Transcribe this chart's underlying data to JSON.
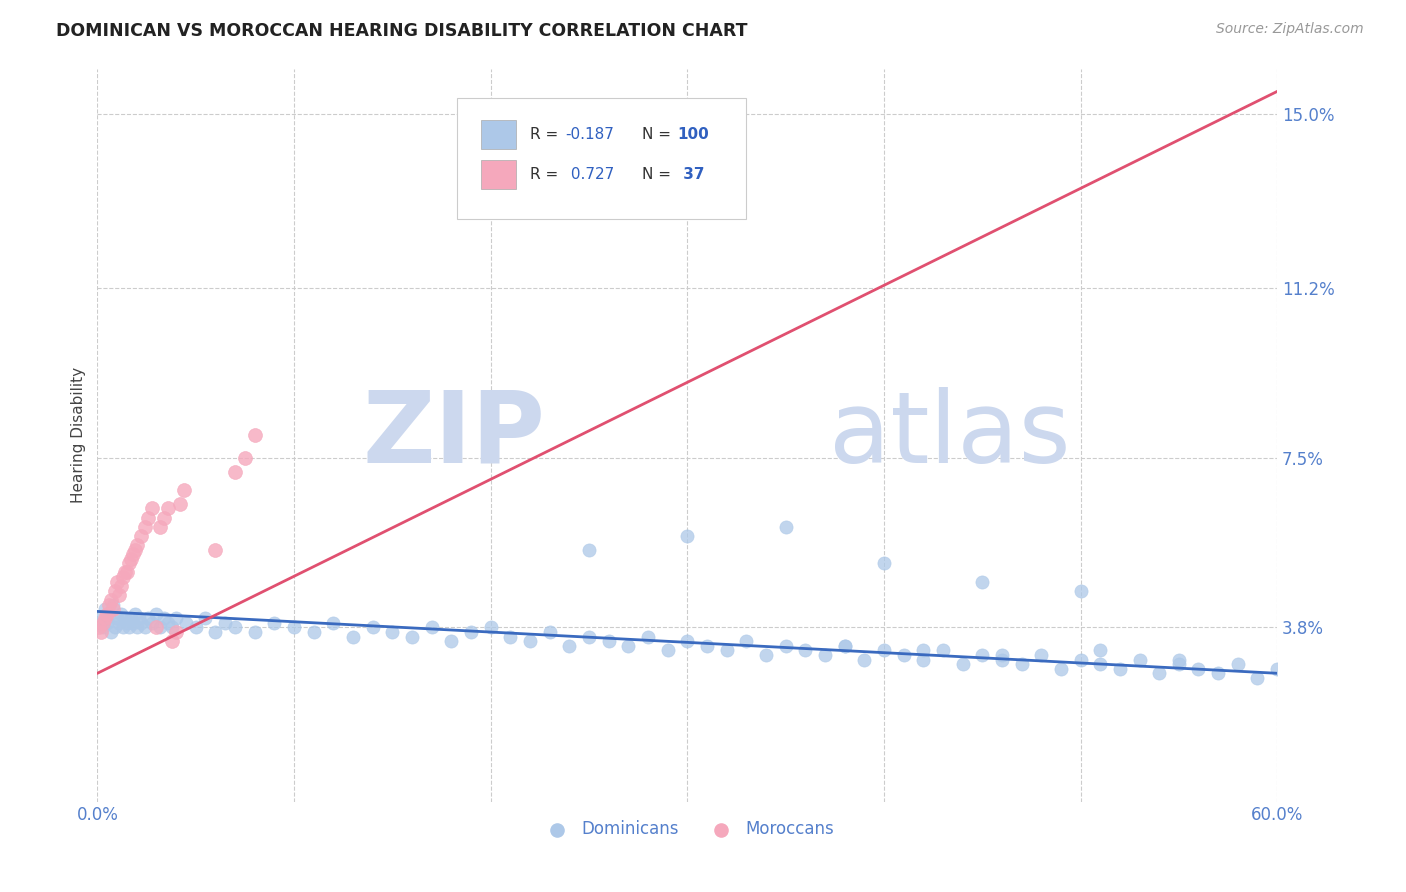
{
  "title": "DOMINICAN VS MOROCCAN HEARING DISABILITY CORRELATION CHART",
  "source": "Source: ZipAtlas.com",
  "ylabel": "Hearing Disability",
  "xlim": [
    0.0,
    0.6
  ],
  "ylim": [
    0.0,
    0.16
  ],
  "yticks": [
    0.038,
    0.075,
    0.112,
    0.15
  ],
  "ytick_labels": [
    "3.8%",
    "7.5%",
    "11.2%",
    "15.0%"
  ],
  "background_color": "#ffffff",
  "dominican_color": "#adc8e8",
  "moroccan_color": "#f5a8bc",
  "dominican_line_color": "#3a6abf",
  "moroccan_line_color": "#e05070",
  "legend_R_dominican": "-0.187",
  "legend_N_dominican": "100",
  "legend_R_moroccan": "0.727",
  "legend_N_moroccan": "37",
  "watermark_zip": "ZIP",
  "watermark_atlas": "atlas",
  "watermark_color": "#ccd8ee",
  "dominican_scatter_x": [
    0.002,
    0.003,
    0.004,
    0.005,
    0.006,
    0.007,
    0.008,
    0.009,
    0.01,
    0.011,
    0.012,
    0.013,
    0.014,
    0.015,
    0.016,
    0.017,
    0.018,
    0.019,
    0.02,
    0.021,
    0.022,
    0.024,
    0.026,
    0.028,
    0.03,
    0.032,
    0.034,
    0.036,
    0.038,
    0.04,
    0.045,
    0.05,
    0.055,
    0.06,
    0.065,
    0.07,
    0.08,
    0.09,
    0.1,
    0.11,
    0.12,
    0.13,
    0.14,
    0.15,
    0.16,
    0.17,
    0.18,
    0.19,
    0.2,
    0.21,
    0.22,
    0.23,
    0.24,
    0.25,
    0.26,
    0.27,
    0.28,
    0.29,
    0.3,
    0.31,
    0.32,
    0.33,
    0.34,
    0.35,
    0.36,
    0.37,
    0.38,
    0.39,
    0.4,
    0.41,
    0.42,
    0.43,
    0.44,
    0.45,
    0.46,
    0.47,
    0.48,
    0.49,
    0.5,
    0.51,
    0.52,
    0.53,
    0.54,
    0.55,
    0.56,
    0.57,
    0.58,
    0.59,
    0.6,
    0.25,
    0.3,
    0.35,
    0.4,
    0.45,
    0.5,
    0.38,
    0.42,
    0.46,
    0.51,
    0.55
  ],
  "dominican_scatter_y": [
    0.04,
    0.038,
    0.042,
    0.039,
    0.041,
    0.037,
    0.043,
    0.038,
    0.04,
    0.039,
    0.041,
    0.038,
    0.04,
    0.039,
    0.038,
    0.04,
    0.039,
    0.041,
    0.038,
    0.04,
    0.039,
    0.038,
    0.04,
    0.039,
    0.041,
    0.038,
    0.04,
    0.039,
    0.038,
    0.04,
    0.039,
    0.038,
    0.04,
    0.037,
    0.039,
    0.038,
    0.037,
    0.039,
    0.038,
    0.037,
    0.039,
    0.036,
    0.038,
    0.037,
    0.036,
    0.038,
    0.035,
    0.037,
    0.038,
    0.036,
    0.035,
    0.037,
    0.034,
    0.036,
    0.035,
    0.034,
    0.036,
    0.033,
    0.035,
    0.034,
    0.033,
    0.035,
    0.032,
    0.034,
    0.033,
    0.032,
    0.034,
    0.031,
    0.033,
    0.032,
    0.031,
    0.033,
    0.03,
    0.032,
    0.031,
    0.03,
    0.032,
    0.029,
    0.031,
    0.03,
    0.029,
    0.031,
    0.028,
    0.03,
    0.029,
    0.028,
    0.03,
    0.027,
    0.029,
    0.055,
    0.058,
    0.06,
    0.052,
    0.048,
    0.046,
    0.034,
    0.033,
    0.032,
    0.033,
    0.031
  ],
  "moroccan_scatter_x": [
    0.001,
    0.002,
    0.003,
    0.004,
    0.005,
    0.006,
    0.007,
    0.008,
    0.009,
    0.01,
    0.011,
    0.012,
    0.013,
    0.014,
    0.015,
    0.016,
    0.017,
    0.018,
    0.019,
    0.02,
    0.022,
    0.024,
    0.026,
    0.028,
    0.03,
    0.032,
    0.034,
    0.036,
    0.038,
    0.04,
    0.042,
    0.044,
    0.06,
    0.07,
    0.075,
    0.08,
    0.2
  ],
  "moroccan_scatter_y": [
    0.038,
    0.037,
    0.039,
    0.04,
    0.041,
    0.043,
    0.044,
    0.042,
    0.046,
    0.048,
    0.045,
    0.047,
    0.049,
    0.05,
    0.05,
    0.052,
    0.053,
    0.054,
    0.055,
    0.056,
    0.058,
    0.06,
    0.062,
    0.064,
    0.038,
    0.06,
    0.062,
    0.064,
    0.035,
    0.037,
    0.065,
    0.068,
    0.055,
    0.072,
    0.075,
    0.08,
    0.13
  ],
  "dominican_line_x": [
    0.0,
    0.6
  ],
  "dominican_line_y": [
    0.0415,
    0.028
  ],
  "moroccan_line_x": [
    0.0,
    0.6
  ],
  "moroccan_line_y": [
    0.028,
    0.155
  ]
}
